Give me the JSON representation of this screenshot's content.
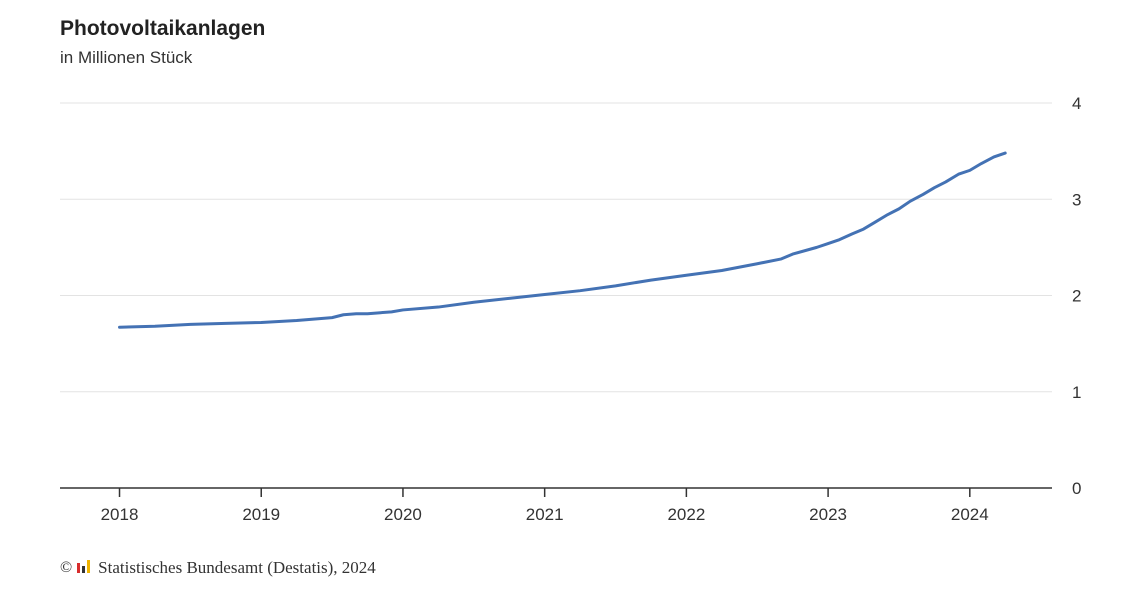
{
  "chart_data": {
    "type": "line",
    "title": "Photovoltaikanlagen",
    "subtitle": "in Millionen Stück",
    "xlabel": "",
    "ylabel": "",
    "x_ticks": [
      "2018",
      "2019",
      "2020",
      "2021",
      "2022",
      "2023",
      "2024"
    ],
    "y_ticks": [
      "0",
      "1",
      "2",
      "3",
      "4"
    ],
    "ylim": [
      0,
      4
    ],
    "xlim": [
      2017.58,
      2024.58
    ],
    "y_axis_side": "right",
    "grid": true,
    "legend": "none",
    "line_color": "#4472b4",
    "series": [
      {
        "x": [
          2018.0,
          2018.25,
          2018.5,
          2018.75,
          2019.0,
          2019.25,
          2019.5,
          2019.58,
          2019.67,
          2019.75,
          2019.83,
          2019.92,
          2020.0,
          2020.25,
          2020.5,
          2020.75,
          2021.0,
          2021.25,
          2021.5,
          2021.75,
          2022.0,
          2022.25,
          2022.5,
          2022.67,
          2022.75,
          2022.92,
          2023.0,
          2023.08,
          2023.17,
          2023.25,
          2023.33,
          2023.42,
          2023.5,
          2023.58,
          2023.67,
          2023.75,
          2023.83,
          2023.92,
          2024.0,
          2024.08,
          2024.17,
          2024.25
        ],
        "y": [
          1.67,
          1.68,
          1.7,
          1.71,
          1.72,
          1.74,
          1.77,
          1.8,
          1.81,
          1.81,
          1.82,
          1.83,
          1.85,
          1.88,
          1.93,
          1.97,
          2.01,
          2.05,
          2.1,
          2.16,
          2.21,
          2.26,
          2.33,
          2.38,
          2.43,
          2.5,
          2.54,
          2.58,
          2.64,
          2.69,
          2.76,
          2.84,
          2.9,
          2.98,
          3.05,
          3.12,
          3.18,
          3.26,
          3.3,
          3.37,
          3.44,
          3.48
        ]
      }
    ]
  },
  "source": {
    "copyright": "©",
    "text": "Statistisches Bundesamt (Destatis), 2024",
    "logo_colors": [
      "#d82d2d",
      "#333333",
      "#f0b400"
    ]
  }
}
